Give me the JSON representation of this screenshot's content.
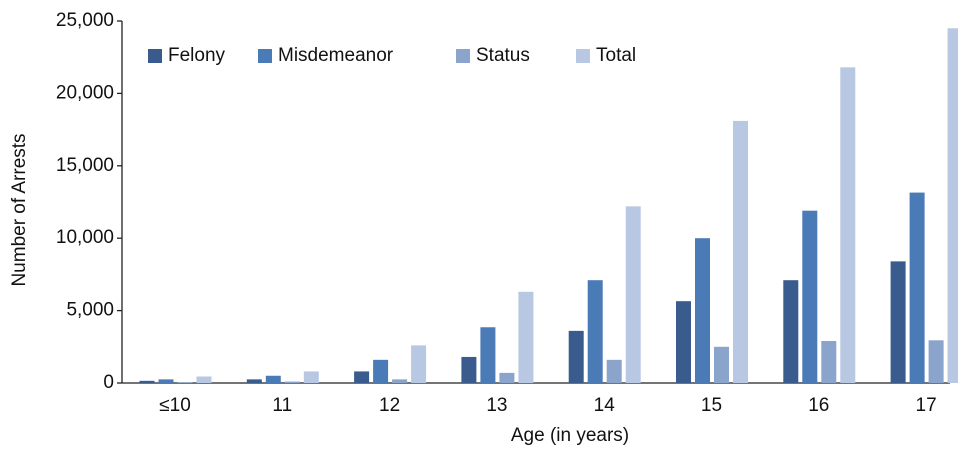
{
  "chart_data": {
    "type": "bar",
    "xlabel": "Age (in years)",
    "ylabel": "Number of Arrests",
    "categories": [
      "≤10",
      "11",
      "12",
      "13",
      "14",
      "15",
      "16",
      "17"
    ],
    "series": [
      {
        "name": "Felony",
        "color": "#3a5b8e",
        "values": [
          150,
          250,
          800,
          1800,
          3600,
          5650,
          7100,
          8400
        ]
      },
      {
        "name": "Misdemeanor",
        "color": "#4a7bb7",
        "values": [
          250,
          500,
          1600,
          3850,
          7100,
          10000,
          11900,
          13150
        ]
      },
      {
        "name": "Status",
        "color": "#8aa4cb",
        "values": [
          50,
          100,
          250,
          700,
          1600,
          2500,
          2900,
          2950
        ]
      },
      {
        "name": "Total",
        "color": "#b8c8e2",
        "values": [
          450,
          800,
          2600,
          6300,
          12200,
          18100,
          21800,
          24500
        ]
      }
    ],
    "ylim": [
      0,
      25000
    ],
    "yticks": [
      0,
      {
        "value": 5000,
        "label": "5,000"
      },
      {
        "value": 10000,
        "label": "10,000"
      },
      {
        "value": 15000,
        "label": "15,000"
      },
      {
        "value": 20000,
        "label": "20,000"
      },
      {
        "value": 25000,
        "label": "25,000"
      }
    ],
    "grid": false,
    "legend": "upper left"
  }
}
